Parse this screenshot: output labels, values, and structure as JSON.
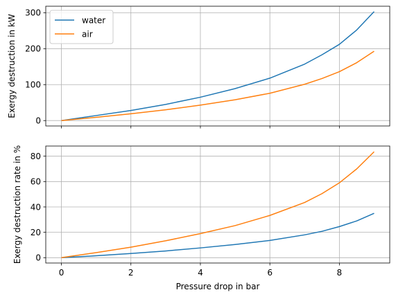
{
  "chart_data": [
    {
      "type": "line",
      "xlabel": "",
      "ylabel": "Exergy destruction in kW",
      "xlim": [
        -0.45,
        9.45
      ],
      "ylim": [
        -15,
        318
      ],
      "xticks": [
        0,
        2,
        4,
        6,
        8
      ],
      "yticks": [
        0,
        100,
        200,
        300
      ],
      "grid": true,
      "legend": "top-left",
      "series": [
        {
          "name": "water",
          "color": "#1f77b4",
          "x": [
            0,
            1,
            2,
            3,
            4,
            5,
            6,
            7,
            7.5,
            8,
            8.5,
            9
          ],
          "y": [
            0,
            14,
            28,
            45,
            65,
            89,
            118,
            157,
            183,
            212,
            252,
            303
          ]
        },
        {
          "name": "air",
          "color": "#ff7f0e",
          "x": [
            0,
            1,
            2,
            3,
            4,
            5,
            6,
            7,
            7.5,
            8,
            8.5,
            9
          ],
          "y": [
            0,
            9,
            19,
            30,
            43,
            58,
            76,
            101,
            117,
            136,
            161,
            193
          ]
        }
      ]
    },
    {
      "type": "line",
      "xlabel": "Pressure drop in bar",
      "ylabel": "Exergy destruction rate in %",
      "xlim": [
        -0.45,
        9.45
      ],
      "ylim": [
        -4.2,
        88
      ],
      "xticks": [
        0,
        2,
        4,
        6,
        8
      ],
      "xticklabels": [
        "0",
        "2",
        "4",
        "6",
        "8"
      ],
      "yticks": [
        0,
        20,
        40,
        60,
        80
      ],
      "grid": true,
      "series": [
        {
          "name": "water",
          "color": "#1f77b4",
          "x": [
            0,
            1,
            2,
            3,
            4,
            5,
            6,
            7,
            7.5,
            8,
            8.5,
            9
          ],
          "y": [
            0,
            1.5,
            3.3,
            5.3,
            7.7,
            10.4,
            13.6,
            18,
            20.8,
            24.5,
            29,
            35
          ]
        },
        {
          "name": "air",
          "color": "#ff7f0e",
          "x": [
            0,
            1,
            2,
            3,
            4,
            5,
            6,
            7,
            7.5,
            8,
            8.5,
            9
          ],
          "y": [
            0,
            4,
            8.3,
            13.3,
            19,
            25.3,
            33.3,
            43.5,
            50.5,
            59,
            70,
            83.5
          ]
        }
      ]
    }
  ]
}
